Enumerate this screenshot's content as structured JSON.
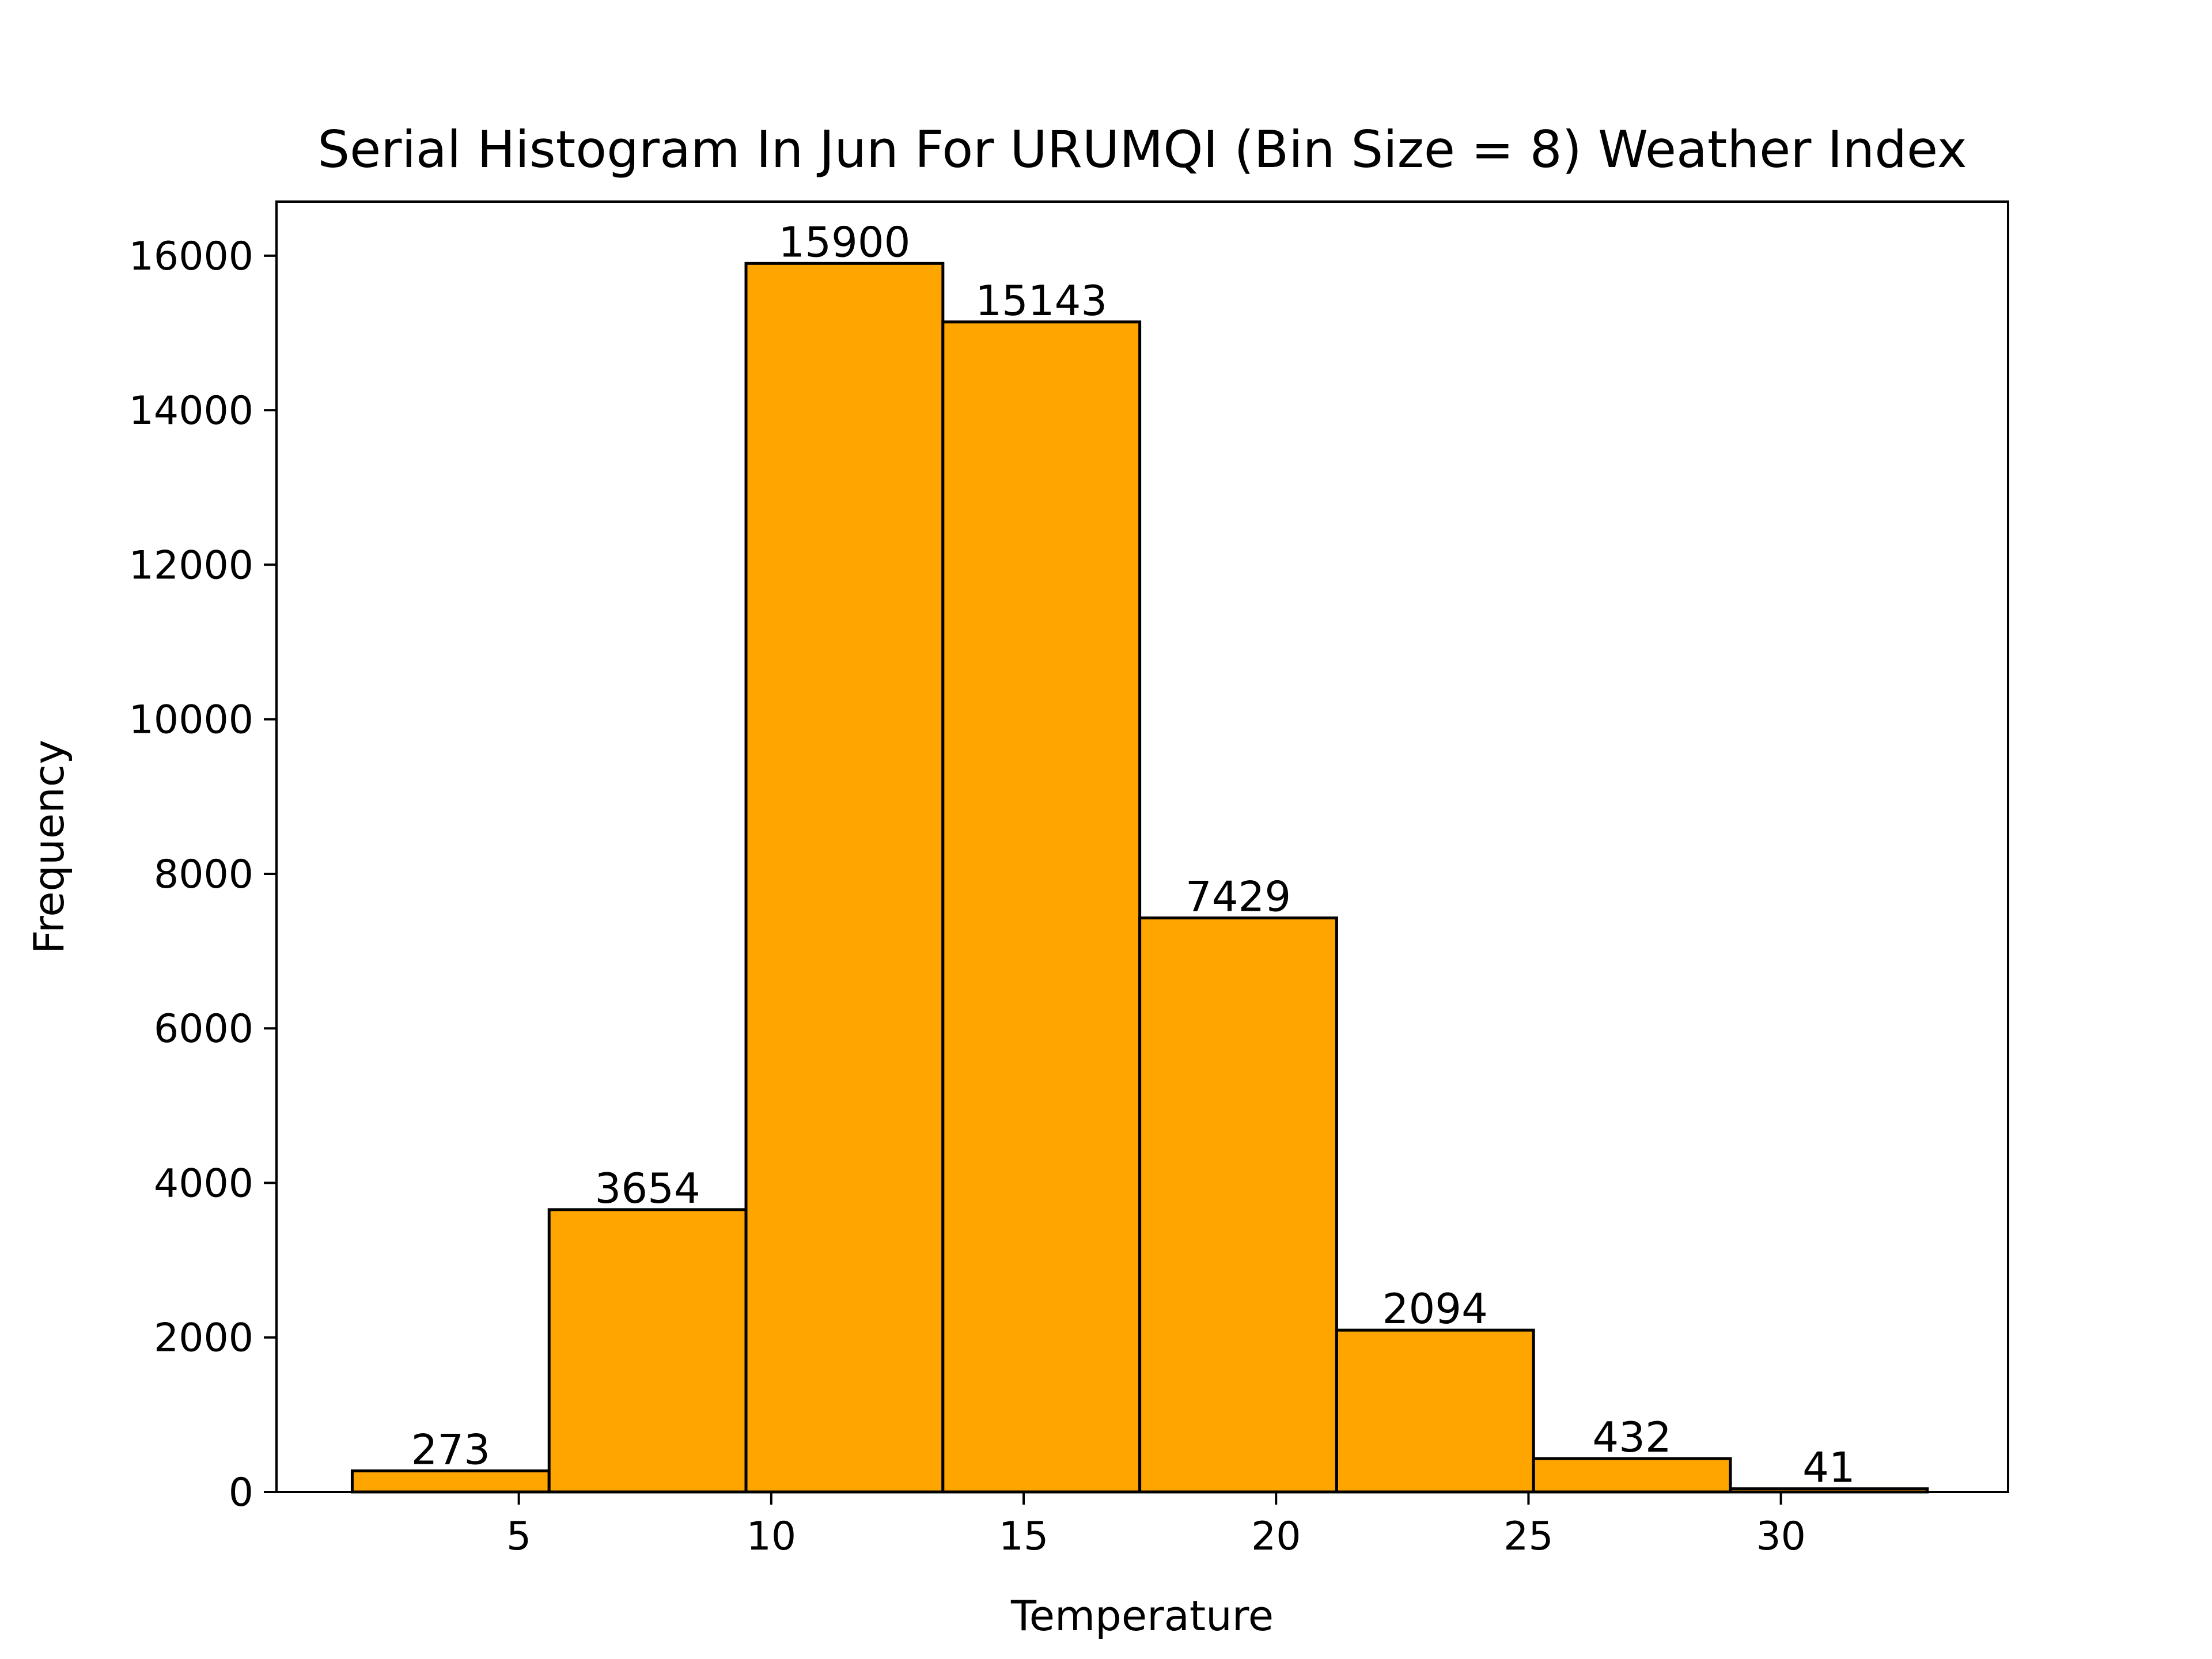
{
  "chart_data": {
    "type": "bar",
    "title": "Serial Histogram In Jun For URUMQI (Bin Size = 8) Weather Index",
    "xlabel": "Temperature",
    "ylabel": "Frequency",
    "bin_edges": [
      1.7,
      5.6,
      9.5,
      13.4,
      17.3,
      21.2,
      25.1,
      29.0,
      32.9
    ],
    "values": [
      273,
      3654,
      15900,
      15143,
      7429,
      2094,
      432,
      41
    ],
    "data_labels": [
      "273",
      "3654",
      "15900",
      "15143",
      "7429",
      "2094",
      "432",
      "41"
    ],
    "xlim": [
      0.2,
      34.5
    ],
    "ylim": [
      0,
      16700
    ],
    "xticks": [
      5,
      10,
      15,
      20,
      25,
      30
    ],
    "xtick_labels": [
      "5",
      "10",
      "15",
      "20",
      "25",
      "30"
    ],
    "yticks": [
      0,
      2000,
      4000,
      6000,
      8000,
      10000,
      12000,
      14000,
      16000
    ],
    "ytick_labels": [
      "0",
      "2000",
      "4000",
      "6000",
      "8000",
      "10000",
      "12000",
      "14000",
      "16000"
    ],
    "grid": false,
    "bar_color": "#FFA500",
    "edge_color": "#000000"
  }
}
